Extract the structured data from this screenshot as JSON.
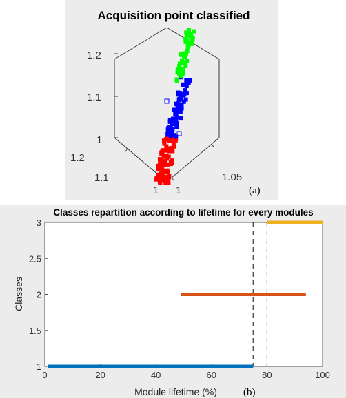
{
  "chart_data": [
    {
      "type": "scatter",
      "title": "Acquisition point classified",
      "panel_label": "(a)",
      "projection": "3d",
      "z_ticks": [
        "1.2",
        "1.1",
        "1"
      ],
      "left_axis_ticks": [
        "1.2",
        "1.1",
        "1"
      ],
      "right_axis_ticks": [
        "1",
        "1.05"
      ],
      "series": [
        {
          "color": "#ff0000",
          "marker": "square",
          "z_range": [
            1.0,
            1.04
          ]
        },
        {
          "color": "#0000ff",
          "marker": "square",
          "z_range": [
            1.04,
            1.16
          ]
        },
        {
          "color": "#00ff00",
          "marker": "square",
          "z_range": [
            1.16,
            1.21
          ]
        }
      ]
    },
    {
      "type": "line",
      "title": "Classes repartition according to lifetime for every modules",
      "panel_label": "(b)",
      "xlabel": "Module lifetime (%)",
      "ylabel": "Classes",
      "xlim": [
        0,
        100
      ],
      "ylim": [
        1,
        3
      ],
      "x_ticks": [
        "0",
        "20",
        "40",
        "60",
        "80",
        "100"
      ],
      "y_ticks": [
        "1",
        "1.5",
        "2",
        "2.5",
        "3"
      ],
      "x_tick_values": [
        0,
        20,
        40,
        60,
        80,
        100
      ],
      "y_tick_values": [
        1,
        1.5,
        2,
        2.5,
        3
      ],
      "series": [
        {
          "class": 1,
          "x": [
            1,
            75
          ],
          "color": "#0072bd"
        },
        {
          "class": 2,
          "x": [
            49,
            94
          ],
          "color": "#d95319"
        },
        {
          "class": 3,
          "x": [
            80,
            100
          ],
          "color": "#edb120"
        }
      ],
      "vertical_lines": [
        75,
        80
      ],
      "grid": false
    }
  ]
}
